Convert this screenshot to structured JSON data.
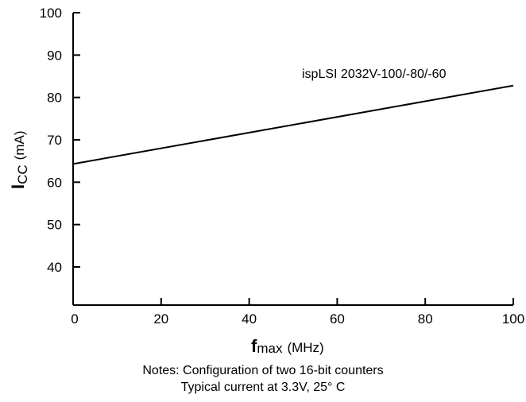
{
  "chart_data": {
    "type": "line",
    "x_ticks": [
      "0",
      "20",
      "40",
      "60",
      "80",
      "100"
    ],
    "y_ticks": [
      "40",
      "50",
      "60",
      "70",
      "80",
      "90",
      "100"
    ],
    "xlim": [
      0,
      100
    ],
    "ylim": [
      31,
      100
    ],
    "xlabel": {
      "main": "f",
      "sub": "max",
      "unit": "(MHz)"
    },
    "ylabel": {
      "main": "I",
      "sub": "CC",
      "unit": "(mA)"
    },
    "series": [
      {
        "name": "ispLSI 2032V-100/-80/-60",
        "x": [
          0,
          100
        ],
        "y": [
          64.3,
          82.8
        ]
      }
    ],
    "grid": false
  },
  "notes": [
    "Notes: Configuration of two 16-bit counters",
    "Typical current at 3.3V, 25° C"
  ],
  "colors": {
    "line": "#000000",
    "background": "#ffffff"
  }
}
